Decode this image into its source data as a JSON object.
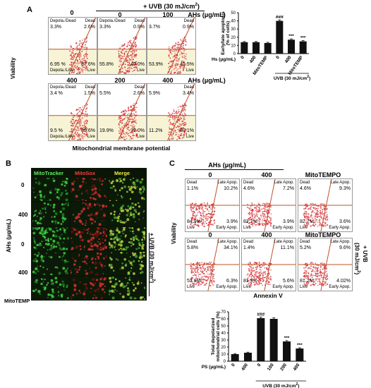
{
  "panelA": {
    "label": "A",
    "uvb_header": "+ UVB (30 mJ/cm",
    "uvb_sup": "2",
    "uvb_close": ")",
    "ahs_unit": "AHs (μg/mL)",
    "y_axis": "Viability",
    "x_axis": "Mitochondrial membrane potential",
    "plots": [
      {
        "dose": "0",
        "ul": "3.3%",
        "ur": "2.6%",
        "ll": "6.95 %",
        "lr": "87.6%",
        "t_ul": "Depola./Dead",
        "t_ur": "Dead",
        "t_ll": "Depola./Live",
        "t_lr": "Live"
      },
      {
        "dose": "0",
        "ul": "3.3%",
        "ur": "0.9%",
        "ll": "55.8%",
        "lr": "40.0%",
        "t_ul": "Depola./Dead",
        "t_ur": "Dead",
        "t_ll": "",
        "t_lr": "Live"
      },
      {
        "dose": "100",
        "ul": "3.7%",
        "ur": "0.9%",
        "ll": "53.9%",
        "lr": "41.5%",
        "t_ul": "",
        "t_ur": "Dead",
        "t_ll": "",
        "t_lr": "Live"
      },
      {
        "dose": "400",
        "ul": "3.4 %",
        "ur": "1.5%",
        "ll": "9.5 %",
        "lr": "85.6%",
        "t_ul": "Depola./Dead",
        "t_ur": "Dead",
        "t_ll": "Depola./Live",
        "t_lr": "Live"
      },
      {
        "dose": "200",
        "ul": "5.5%",
        "ur": "2.6%",
        "ll": "19.9%",
        "lr": "72.0%",
        "t_ul": "",
        "t_ur": "Dead",
        "t_ll": "",
        "t_lr": "Live"
      },
      {
        "dose": "400",
        "ul": "5.9%",
        "ur": "3.4%",
        "ll": "11.2%",
        "lr": "80.1%",
        "t_ul": "",
        "t_ur": "Dead",
        "t_ll": "",
        "t_lr": "Live"
      }
    ],
    "bar": {
      "ylabel1": "Early/late apoptosis",
      "ylabel2": "(% of cells)",
      "yticks": [
        "0",
        "10",
        "20",
        "30",
        "40",
        "50"
      ],
      "row_label": "AHs (μg/mL)",
      "categories": [
        "0",
        "400",
        "MitoTEMP",
        "0",
        "400",
        "MitoTEMP"
      ],
      "uvb_label": "UVB (30 mJ/cm",
      "sig": [
        "",
        "",
        "",
        "###",
        "***",
        "***"
      ]
    }
  },
  "panelB": {
    "label": "B",
    "cols": [
      "MitoTracker",
      "MitoSox",
      "Merge"
    ],
    "row_labels": [
      "0",
      "400",
      "0",
      "400",
      "MitoTEMP"
    ],
    "ahs": "AHs (μg/mL)",
    "uvb": "+ UVB (30 mJ/cm",
    "uvb_sup": "2",
    "uvb_close": ")"
  },
  "panelC": {
    "label": "C",
    "ahs": "AHs (μg/mL)",
    "col_heads": [
      "0",
      "400",
      "MitoTEMPO"
    ],
    "y_axis": "Viability",
    "x_axis": "Annexin V",
    "uvb_side": "+ UVB",
    "uvb_side2": "(30 mJ/cm",
    "uvb_sup": "2",
    "uvb_close": ")",
    "plots": [
      {
        "ul": "1.1%",
        "ur": "10.2%",
        "ll": "84.9%",
        "lr": "3.9%",
        "t_ul": "Dead",
        "t_ur": "Late Apop.",
        "t_ll": "Live",
        "t_lr": "Early Apop.",
        "head": ""
      },
      {
        "ul": "4.6%",
        "ur": "7.2%",
        "ll": "82.7%",
        "lr": "3.9%",
        "t_ul": "Dead",
        "t_ur": "Late Apop.",
        "t_ll": "Live",
        "t_lr": "Early Apop.",
        "head": ""
      },
      {
        "ul": "4.6%",
        "ur": "9.3%",
        "ll": "82.7%",
        "lr": "3.6%",
        "t_ul": "Dead",
        "t_ur": "Late Apop.",
        "t_ll": "Live",
        "t_lr": "Early Apop.",
        "head": ""
      },
      {
        "ul": "5.8%",
        "ur": "34.1%",
        "ll": "53.8%",
        "lr": "6.3%",
        "t_ul": "Dead",
        "t_ur": "Late Apop.",
        "t_ll": "Live",
        "t_lr": "Early Apop.",
        "head": "0"
      },
      {
        "ul": "1.4%",
        "ur": "11.1%",
        "ll": "81.9%",
        "lr": "5.6%",
        "t_ul": "Dead",
        "t_ur": "Late Apop.",
        "t_ll": "Live",
        "t_lr": "Early Apop.",
        "head": "400"
      },
      {
        "ul": "5.2%",
        "ur": "9.6%",
        "ll": "81.2%",
        "lr": "4.02%",
        "t_ul": "Dead",
        "t_ur": "Late Apop.",
        "t_ll": "Live",
        "t_lr": "Early Apop.",
        "head": "MitoTEMPO"
      }
    ],
    "bar": {
      "ylabel1": "Total depolarized",
      "ylabel2": "mitochondrial cells (%)",
      "yticks": [
        "0",
        "10",
        "20",
        "30",
        "40",
        "50",
        "60",
        "70"
      ],
      "row_label": "PS (μg/mL)",
      "categories": [
        "0",
        "400",
        "0",
        "100",
        "200",
        "400"
      ],
      "uvb_label": "UVB (30 mJ/cm",
      "sig": [
        "",
        "",
        "###",
        "",
        "***",
        "***"
      ]
    }
  },
  "chart_data": [
    {
      "type": "bar",
      "categories": [
        "0",
        "400",
        "MitoTEMP",
        "0",
        "400",
        "MitoTEMP"
      ],
      "values": [
        14,
        14,
        13,
        40,
        17,
        15
      ],
      "errors": [
        0.8,
        0.8,
        0.8,
        1.2,
        1.0,
        0.9
      ],
      "ylabel": "Early/late apoptosis (% of cells)",
      "xlabel": "AHs (μg/mL)",
      "ylim": [
        0,
        50
      ],
      "colors": [
        "#000000",
        "#000000",
        "#000000",
        "#000000",
        "#000000",
        "#000000"
      ]
    },
    {
      "type": "bar",
      "categories": [
        "0",
        "400",
        "0",
        "100",
        "200",
        "400"
      ],
      "values": [
        10,
        12,
        61,
        60,
        28,
        18
      ],
      "errors": [
        0.8,
        0.8,
        1.5,
        1.5,
        1.2,
        1.0
      ],
      "ylabel": "Total depolarized mitochondrial cells (%)",
      "xlabel": "PS (μg/mL)",
      "ylim": [
        0,
        70
      ],
      "colors": [
        "#000000",
        "#000000",
        "#000000",
        "#000000",
        "#000000",
        "#000000"
      ]
    }
  ]
}
